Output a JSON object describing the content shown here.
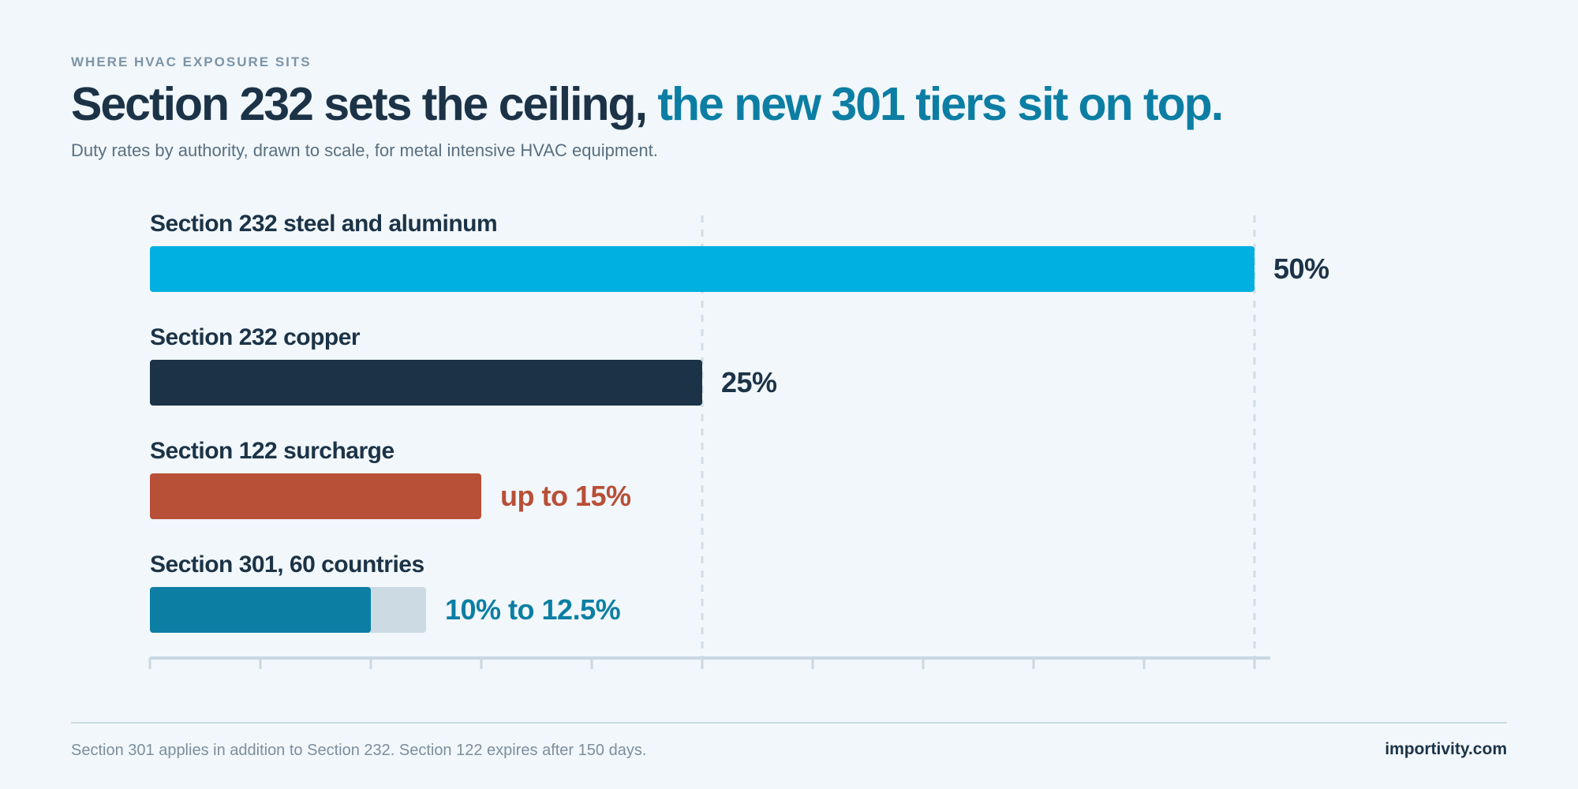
{
  "header": {
    "eyebrow": "WHERE HVAC EXPOSURE SITS",
    "title_main": "Section 232 sets the ceiling,",
    "title_accent": "the new 301 tiers sit on top.",
    "subtitle": "Duty rates by authority, drawn to scale, for metal intensive HVAC equipment."
  },
  "chart_data": {
    "type": "bar",
    "orientation": "horizontal",
    "unit": "%",
    "xlim": [
      0,
      50
    ],
    "tick_step": 5,
    "reference_lines": [
      25,
      50
    ],
    "categories": [
      "Section 232 steel and aluminum",
      "Section 232 copper",
      "Section 122 surcharge",
      "Section 301, 60 countries"
    ],
    "bars": [
      {
        "label": "Section 232 steel and aluminum",
        "value": 50,
        "value_label": "50%",
        "color": "#00b0e0",
        "label_color": "#1c3347"
      },
      {
        "label": "Section 232 copper",
        "value": 25,
        "value_label": "25%",
        "color": "#1c3347",
        "label_color": "#1c3347"
      },
      {
        "label": "Section 122 surcharge",
        "value": 15,
        "value_label": "up to 15%",
        "color": "#b84f37",
        "label_color": "#b84f37"
      },
      {
        "label": "Section 301, 60 countries",
        "value": 10,
        "value_max": 12.5,
        "value_label": "10% to 12.5%",
        "color": "#0c7ea4",
        "range_color": "#cbdae3",
        "label_color": "#0c7ea4"
      }
    ]
  },
  "footer": {
    "note": "Section 301 applies in addition to Section 232. Section 122 expires after 150 days.",
    "brand": "importivity.com"
  }
}
